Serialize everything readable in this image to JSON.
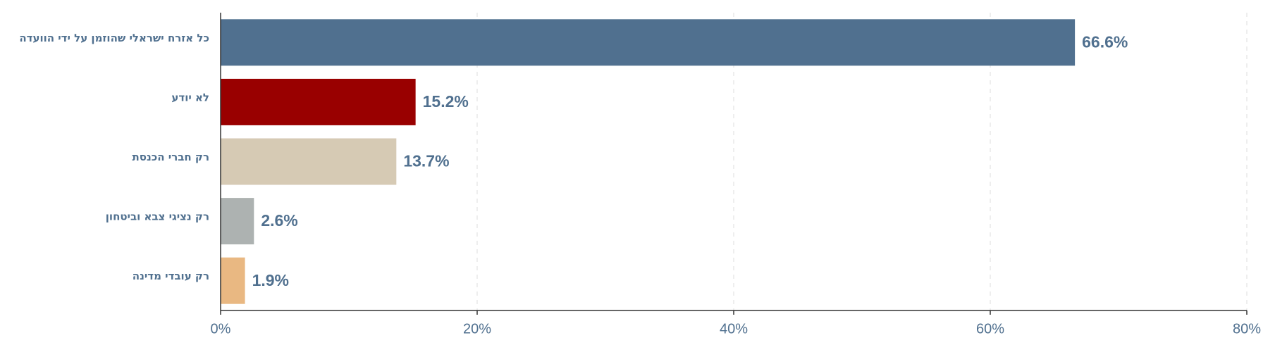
{
  "chart_data": {
    "type": "barh",
    "categories": [
      "כל אזרח ישראלי שהוזמן על ידי הוועדה",
      "לא יודע",
      "רק חברי הכנסת",
      "רק נציגי צבא וביטחון",
      "רק עובדי מדינה"
    ],
    "values": [
      66.6,
      15.2,
      13.7,
      2.6,
      1.9
    ],
    "value_labels": [
      "66.6%",
      "15.2%",
      "13.7%",
      "2.6%",
      "1.9%"
    ],
    "colors": [
      "#50708f",
      "#990000",
      "#d6cab4",
      "#adb2b1",
      "#e9b882"
    ],
    "xlim": [
      0,
      80
    ],
    "xticks": [
      {
        "value": 0,
        "label": "0%"
      },
      {
        "value": 20,
        "label": "20%"
      },
      {
        "value": 40,
        "label": "40%"
      },
      {
        "value": 60,
        "label": "60%"
      },
      {
        "value": 80,
        "label": "80%"
      }
    ],
    "grid": true
  }
}
